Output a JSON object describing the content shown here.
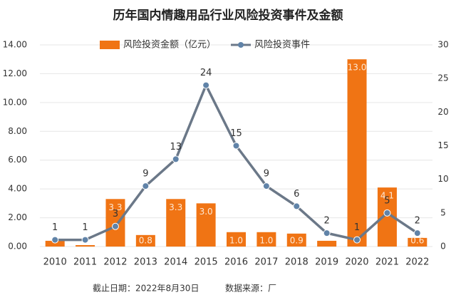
{
  "chart_data": {
    "type": "bar-line",
    "title": "历年国内情趣用品行业风险投资事件及金额",
    "categories": [
      "2010",
      "2011",
      "2012",
      "2013",
      "2014",
      "2015",
      "2016",
      "2017",
      "2018",
      "2019",
      "2020",
      "2021",
      "2022"
    ],
    "series": [
      {
        "name": "风险投资金额（亿元）",
        "type": "bar",
        "color": "#f07414",
        "values": [
          0.4,
          0.1,
          3.3,
          0.8,
          3.3,
          3.0,
          1.0,
          1.0,
          0.9,
          0.4,
          13.0,
          4.1,
          0.6
        ],
        "value_labels": [
          null,
          null,
          "3.3",
          "0.8",
          "3.3",
          "3.0",
          "1.0",
          "1.0",
          "0.9",
          null,
          "13.0",
          "4.1",
          "0.6"
        ]
      },
      {
        "name": "风险投资事件",
        "type": "line",
        "axis": "y2",
        "color": "#6b7888",
        "values": [
          1,
          1,
          3,
          9,
          13,
          24,
          15,
          9,
          6,
          2,
          1,
          5,
          2
        ]
      }
    ],
    "ylim": [
      0,
      14
    ],
    "yticks": [
      {
        "value": 0,
        "label": "0.00"
      },
      {
        "value": 2,
        "label": "2.00"
      },
      {
        "value": 4,
        "label": "4.00"
      },
      {
        "value": 6,
        "label": "6.00"
      },
      {
        "value": 8,
        "label": "8.00"
      },
      {
        "value": 10,
        "label": "10.00"
      },
      {
        "value": 12,
        "label": "12.00"
      },
      {
        "value": 14,
        "label": "14.00"
      }
    ],
    "y2lim": [
      0,
      30
    ],
    "y2ticks": [
      0,
      5,
      10,
      15,
      20,
      25,
      30
    ],
    "grid": true,
    "legend": "top",
    "footnotes": [
      "截止日期：2022年8月30日",
      "数据来源：厂"
    ]
  }
}
